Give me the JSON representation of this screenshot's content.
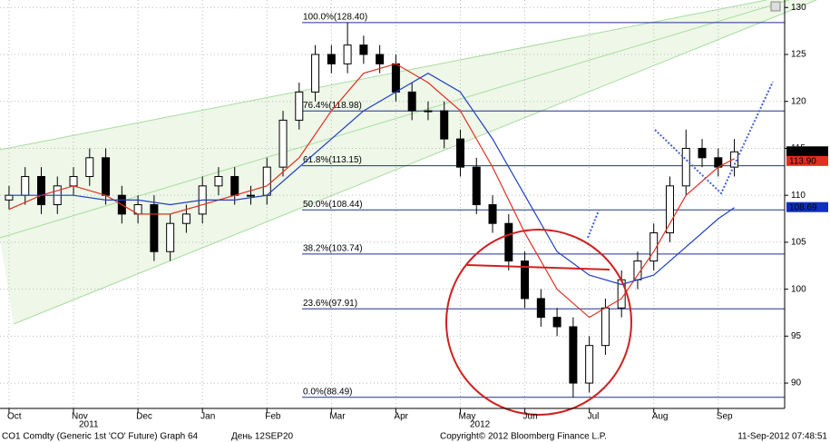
{
  "chart_data": {
    "type": "candlestick",
    "x": [
      0,
      0.25,
      0.5,
      0.75,
      1,
      1.25,
      1.5,
      1.75,
      2,
      2.25,
      2.5,
      2.75,
      3,
      3.25,
      3.5,
      3.75,
      4,
      4.25,
      4.5,
      4.75,
      5,
      5.25,
      5.5,
      5.75,
      6,
      6.25,
      6.5,
      6.75,
      7,
      7.25,
      7.5,
      7.75,
      8,
      8.25,
      8.5,
      8.75,
      9,
      9.25,
      9.5,
      9.75,
      10,
      10.25,
      10.5,
      10.75,
      11,
      11.25
    ],
    "open": [
      109.5,
      110,
      112,
      109,
      111,
      112,
      114,
      110,
      108,
      109,
      104,
      107,
      108,
      111,
      112,
      110,
      110,
      113,
      118,
      121,
      125,
      124,
      126,
      125,
      124,
      121,
      119,
      119,
      116,
      113,
      109,
      107,
      103,
      99,
      97,
      96,
      90,
      94,
      98,
      101,
      103,
      106,
      111,
      115,
      114,
      113
    ],
    "high": [
      111,
      113,
      113,
      112,
      113,
      115,
      115,
      111,
      110,
      110,
      108,
      109,
      112,
      113,
      113,
      111,
      114,
      119,
      122,
      126,
      126,
      128.4,
      127,
      126,
      125,
      122,
      120,
      120,
      117,
      114,
      110,
      108,
      104,
      100,
      98,
      97,
      95,
      99,
      102,
      104,
      107,
      112,
      117,
      116,
      115,
      116
    ],
    "low": [
      108.5,
      109,
      108,
      108,
      110,
      111,
      109,
      107,
      107,
      103,
      103,
      106,
      107,
      110,
      109,
      109,
      109,
      112,
      117,
      120,
      123,
      123,
      124,
      123,
      120,
      118,
      118,
      115,
      112,
      108,
      106,
      102,
      98,
      96,
      95,
      88.49,
      89,
      93,
      97,
      100,
      102,
      105,
      110,
      113,
      112,
      112
    ],
    "close": [
      110,
      112,
      109,
      111,
      112,
      114,
      110,
      108,
      109,
      104,
      107,
      108,
      111,
      112,
      110,
      110,
      113,
      118,
      121,
      125,
      124,
      126,
      125,
      124,
      121,
      119,
      119,
      116,
      113,
      109,
      107,
      103,
      99,
      97,
      96,
      90,
      94,
      98,
      101,
      103,
      106,
      111,
      115,
      114,
      113,
      114.63
    ],
    "up_color": "#ffffff",
    "down_color": "#000000",
    "series": [
      {
        "color": "#e03020",
        "x": [
          0,
          0.5,
          1,
          1.5,
          2,
          2.5,
          3,
          3.5,
          4,
          4.5,
          5,
          5.5,
          6,
          6.5,
          7,
          7.5,
          8,
          8.5,
          9,
          9.5,
          10,
          10.5,
          11,
          11.25
        ],
        "values": [
          108.5,
          110,
          111,
          110,
          108,
          108,
          109,
          110,
          111,
          114,
          119,
          123,
          124,
          122,
          119,
          113,
          106,
          100,
          97,
          99,
          104,
          110,
          113,
          113.9
        ]
      },
      {
        "color": "#2040c0",
        "x": [
          0,
          0.5,
          1,
          1.5,
          2,
          2.5,
          3,
          3.5,
          4,
          4.5,
          5,
          5.5,
          6,
          6.5,
          7,
          7.5,
          8,
          8.5,
          9,
          9.5,
          10,
          10.5,
          11,
          11.25
        ],
        "values": [
          110,
          110,
          110,
          109.5,
          109.5,
          109,
          109.5,
          109.5,
          110,
          113,
          116,
          119,
          121,
          123,
          121,
          116,
          110,
          104,
          101.5,
          100.5,
          101.5,
          104.5,
          107.5,
          108.69
        ]
      }
    ],
    "last_labels": [
      {
        "value": 114.63,
        "label": "114.63",
        "color": "#000000"
      },
      {
        "value": 113.9,
        "label": "113.90",
        "color": "#e03020"
      },
      {
        "value": 108.69,
        "label": "108.69",
        "color": "#1030c0"
      }
    ],
    "levels": [
      {
        "value": 128.4,
        "label": "100.0%(128.40)"
      },
      {
        "value": 118.98,
        "label": "76.4%(118.98)"
      },
      {
        "value": 113.15,
        "label": "61.8%(113.15)"
      },
      {
        "value": 108.44,
        "label": "50.0%(108.44)"
      },
      {
        "value": 103.74,
        "label": "38.2%(103.74)"
      },
      {
        "value": 97.91,
        "label": "23.6%(97.91)"
      },
      {
        "value": 88.49,
        "label": "0.0%(88.49)"
      }
    ],
    "xlim": [
      -0.14,
      12.03
    ],
    "ylim": [
      87.3,
      130.8
    ],
    "yticks": [
      90,
      95,
      100,
      105,
      110,
      115,
      120,
      125,
      130
    ],
    "xticks": [
      {
        "value": 0,
        "label": "Oct"
      },
      {
        "value": 1,
        "label": "Nov"
      },
      {
        "value": 2,
        "label": "Dec"
      },
      {
        "value": 3,
        "label": "Jan"
      },
      {
        "value": 4,
        "label": "Feb"
      },
      {
        "value": 5,
        "label": "Mar"
      },
      {
        "value": 6,
        "label": "Apr"
      },
      {
        "value": 7,
        "label": "May"
      },
      {
        "value": 8,
        "label": "Jun"
      },
      {
        "value": 9,
        "label": "Jul"
      },
      {
        "value": 10,
        "label": "Aug"
      },
      {
        "value": 11,
        "label": "Sep"
      }
    ],
    "years": [
      "2011",
      "2012"
    ],
    "footer": {
      "left": "CO1 Comdty (Generic 1st 'CO' Future) Graph 64",
      "code": "День 12SEP20",
      "copyright": "Copyright© 2012 Bloomberg Finance L.P.",
      "timestamp": "11-Sep-2012 07:48:51"
    },
    "grid": true
  }
}
